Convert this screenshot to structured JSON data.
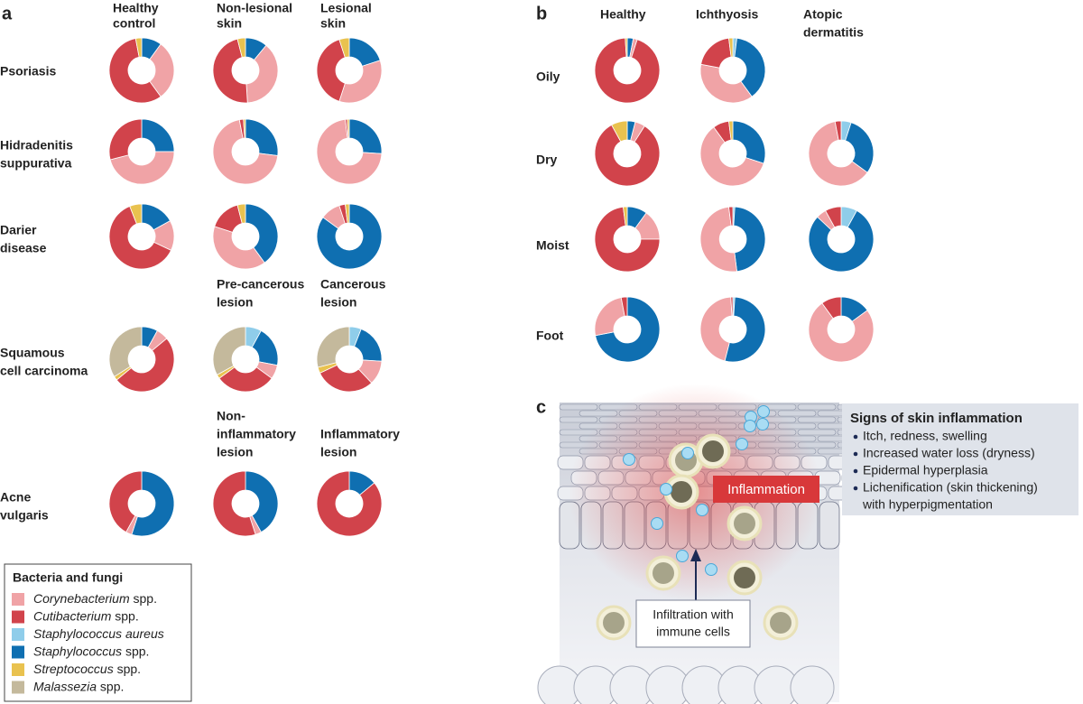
{
  "legend": {
    "title": "Bacteria and fungi",
    "colors": [
      "#f0a3a6",
      "#d1434b",
      "#8fcdea",
      "#0f6fb1",
      "#e9c24f",
      "#c4b99c"
    ],
    "items": [
      {
        "italic": "Corynebacterium",
        "rest": " spp."
      },
      {
        "italic": "Cutibacterium",
        "rest": " spp."
      },
      {
        "italic": "Staphylococcus aureus"
      },
      {
        "italic": "Staphylococcus",
        "rest": " spp."
      },
      {
        "italic": "Streptococcus",
        "rest": " spp."
      },
      {
        "italic": "Malassezia",
        "rest": " spp."
      }
    ]
  },
  "panel_a": {
    "label": "a",
    "columns": [
      [
        "Healthy",
        "control"
      ],
      [
        "Non-lesional",
        "skin"
      ],
      [
        "Lesional",
        "skin"
      ]
    ],
    "rows": [
      {
        "label": [
          "Psoriasis"
        ],
        "pies": [
          {
            "type": "pie",
            "values": [
              30,
              57,
              0,
              10,
              3,
              0
            ]
          },
          {
            "type": "pie",
            "values": [
              38,
              47,
              0,
              11,
              4,
              0
            ]
          },
          {
            "type": "pie",
            "values": [
              35,
              40,
              0,
              20,
              5,
              0
            ]
          }
        ]
      },
      {
        "label": [
          "Hidradenitis",
          "suppurativa"
        ],
        "pies": [
          {
            "type": "pie",
            "values": [
              46,
              29,
              0,
              25,
              0,
              0
            ]
          },
          {
            "type": "pie",
            "values": [
              70,
              2,
              0,
              27,
              1,
              0
            ]
          },
          {
            "type": "pie",
            "values": [
              72,
              1,
              0,
              26,
              1,
              0
            ]
          }
        ]
      },
      {
        "label": [
          "Darier",
          "disease"
        ],
        "pies": [
          {
            "type": "pie",
            "values": [
              15,
              62,
              0,
              17,
              6,
              0
            ]
          },
          {
            "type": "pie",
            "values": [
              40,
              16,
              0,
              40,
              4,
              0
            ]
          },
          {
            "type": "pie",
            "values": [
              10,
              3,
              0,
              85,
              2,
              0
            ]
          }
        ]
      },
      {
        "label": [
          "Squamous",
          "cell carcinoma"
        ],
        "headers": [
          [
            "Pre-cancerous",
            "lesion"
          ],
          [
            "Cancerous",
            "lesion"
          ]
        ],
        "pies": [
          {
            "type": "pie",
            "values": [
              6,
              50,
              0,
              8,
              2,
              34
            ]
          },
          {
            "type": "pie",
            "values": [
              7,
              30,
              8,
              20,
              2,
              33
            ]
          },
          {
            "type": "pie",
            "values": [
              12,
              30,
              6,
              20,
              3,
              29
            ]
          }
        ]
      },
      {
        "label": [
          "Acne",
          "vulgaris"
        ],
        "headers": [
          [
            "Non-",
            "inflammatory",
            "lesion"
          ],
          [
            "Inflammatory",
            "lesion"
          ]
        ],
        "pies": [
          {
            "type": "pie",
            "values": [
              3,
              42,
              0,
              55,
              0,
              0
            ]
          },
          {
            "type": "pie",
            "values": [
              3,
              55,
              0,
              42,
              0,
              0
            ]
          },
          {
            "type": "pie",
            "values": [
              0,
              86,
              0,
              14,
              0,
              0
            ]
          }
        ]
      }
    ]
  },
  "panel_b": {
    "label": "b",
    "columns": [
      [
        "Healthy"
      ],
      [
        "Ichthyosis"
      ],
      [
        "Atopic",
        "dermatitis"
      ]
    ],
    "rows": [
      {
        "label": [
          "Oily"
        ],
        "pies": [
          {
            "type": "pie",
            "values": [
              2,
              94,
              0,
              3,
              1,
              0
            ]
          },
          {
            "type": "pie",
            "values": [
              38,
              20,
              2,
              38,
              2,
              0
            ]
          }
        ]
      },
      {
        "label": [
          "Dry"
        ],
        "pies": [
          {
            "type": "pie",
            "values": [
              5,
              83,
              0,
              4,
              8,
              0
            ]
          },
          {
            "type": "pie",
            "values": [
              60,
              8,
              0,
              30,
              2,
              0
            ]
          },
          {
            "type": "pie",
            "values": [
              62,
              3,
              5,
              30,
              0,
              0
            ]
          }
        ]
      },
      {
        "label": [
          "Moist"
        ],
        "pies": [
          {
            "type": "pie",
            "values": [
              15,
              73,
              0,
              10,
              2,
              0
            ]
          },
          {
            "type": "pie",
            "values": [
              50,
              2,
              1,
              47,
              0,
              0
            ]
          },
          {
            "type": "pie",
            "values": [
              5,
              8,
              8,
              79,
              0,
              0
            ]
          }
        ]
      },
      {
        "label": [
          "Foot"
        ],
        "pies": [
          {
            "type": "pie",
            "values": [
              25,
              3,
              0,
              72,
              0,
              0
            ]
          },
          {
            "type": "pie",
            "values": [
              45,
              1,
              1,
              53,
              0,
              0
            ]
          },
          {
            "type": "pie",
            "values": [
              75,
              10,
              0,
              15,
              0,
              0
            ]
          }
        ]
      }
    ]
  },
  "panel_c": {
    "label": "c",
    "inflammation": "Inflammation",
    "infiltration": [
      "Infiltration with",
      "immune cells"
    ],
    "signs_title": "Signs of skin inflammation",
    "signs": [
      [
        "Itch, redness, swelling"
      ],
      [
        "Increased water loss (dryness)"
      ],
      [
        "Epidermal hyperplasia"
      ],
      [
        "Lichenification (skin thickening)",
        "with hyperpigmentation"
      ]
    ]
  }
}
